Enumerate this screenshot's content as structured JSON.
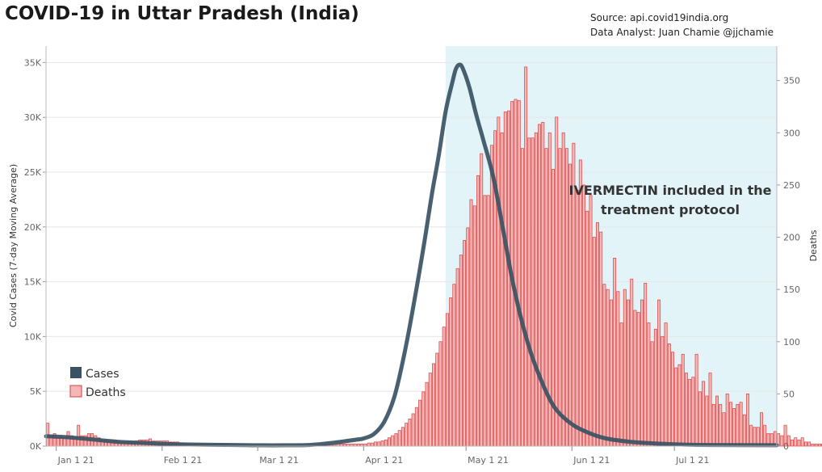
{
  "title": "COVID-19 in Uttar Pradesh (India)",
  "source_line": "Source: api.covid19india.org",
  "analyst_line": "Data Analyst:  Juan Chamie @jjchamie",
  "colors": {
    "cases_line": "#3a5264",
    "bar_fill": "#f4b6b6",
    "bar_stroke": "#d9403f",
    "highlight": "#e2f4f8",
    "grid": "#e6e6e6"
  },
  "chart_data": {
    "type": "bar+line",
    "x_start": "2020-12-29",
    "x_end": "2021-07-31",
    "x_tick_labels": [
      {
        "date": "2021-01-01",
        "label": "Jan 1 21"
      },
      {
        "date": "2021-02-01",
        "label": "Feb 1 21"
      },
      {
        "date": "2021-03-01",
        "label": "Mar 1 21"
      },
      {
        "date": "2021-04-01",
        "label": "Apr 1 21"
      },
      {
        "date": "2021-05-01",
        "label": "May 1 21"
      },
      {
        "date": "2021-06-01",
        "label": "Jun 1 21"
      },
      {
        "date": "2021-07-01",
        "label": "Jul 1 21"
      }
    ],
    "y_left": {
      "label": "Covid Cases (7-day Moving Average)",
      "range": [
        0,
        36500
      ],
      "ticks": [
        0,
        5000,
        10000,
        15000,
        20000,
        25000,
        30000,
        35000
      ],
      "tick_labels": [
        "0K",
        "5K",
        "10K",
        "15K",
        "20K",
        "25K",
        "30K",
        "35K"
      ]
    },
    "y_right": {
      "label": "Deaths",
      "range": [
        0,
        383
      ],
      "ticks": [
        0,
        50,
        100,
        150,
        200,
        250,
        300,
        350
      ],
      "tick_labels": [
        "0",
        "50",
        "100",
        "150",
        "200",
        "250",
        "300",
        "350"
      ]
    },
    "highlight_region": {
      "start": "2021-04-25",
      "end": "2021-07-31"
    },
    "annotation": [
      "IVERMECTIN included in the",
      "treatment protocol"
    ],
    "legend": [
      {
        "name": "Cases",
        "type": "line"
      },
      {
        "name": "Deaths",
        "type": "bar"
      }
    ],
    "series": [
      {
        "name": "Cases",
        "type": "line",
        "axis": "left",
        "x": [
          "2020-12-29",
          "2021-01-05",
          "2021-01-12",
          "2021-01-19",
          "2021-01-26",
          "2021-02-02",
          "2021-02-09",
          "2021-02-16",
          "2021-02-23",
          "2021-03-02",
          "2021-03-09",
          "2021-03-16",
          "2021-03-23",
          "2021-03-30",
          "2021-04-01",
          "2021-04-04",
          "2021-04-07",
          "2021-04-10",
          "2021-04-13",
          "2021-04-16",
          "2021-04-19",
          "2021-04-21",
          "2021-04-23",
          "2021-04-25",
          "2021-04-27",
          "2021-04-28",
          "2021-04-29",
          "2021-04-30",
          "2021-05-02",
          "2021-05-04",
          "2021-05-06",
          "2021-05-09",
          "2021-05-12",
          "2021-05-15",
          "2021-05-19",
          "2021-05-23",
          "2021-05-27",
          "2021-06-01",
          "2021-06-06",
          "2021-06-11",
          "2021-06-18",
          "2021-06-25",
          "2021-07-03",
          "2021-07-12",
          "2021-07-31"
        ],
        "values": [
          900,
          800,
          600,
          400,
          300,
          200,
          150,
          120,
          100,
          80,
          80,
          100,
          300,
          600,
          700,
          1100,
          2200,
          4500,
          8500,
          13500,
          19000,
          23000,
          26500,
          30500,
          33200,
          34400,
          34800,
          34500,
          32700,
          30200,
          28000,
          24500,
          19500,
          14500,
          9500,
          6000,
          3500,
          2000,
          1200,
          700,
          400,
          250,
          150,
          100,
          80
        ]
      },
      {
        "name": "Deaths",
        "type": "bar",
        "axis": "right",
        "start": "2020-12-29",
        "values": [
          22,
          10,
          12,
          8,
          9,
          8,
          14,
          10,
          8,
          20,
          10,
          10,
          12,
          12,
          10,
          8,
          6,
          6,
          5,
          5,
          5,
          4,
          4,
          4,
          4,
          4,
          5,
          6,
          6,
          6,
          7,
          5,
          5,
          5,
          5,
          5,
          4,
          4,
          4,
          3,
          3,
          2,
          2,
          2,
          2,
          2,
          2,
          2,
          2,
          2,
          2,
          2,
          2,
          1,
          1,
          1,
          1,
          1,
          1,
          1,
          1,
          1,
          1,
          1,
          1,
          1,
          1,
          1,
          1,
          1,
          1,
          1,
          1,
          1,
          1,
          1,
          1,
          1,
          1,
          1,
          1,
          1,
          1,
          1,
          1,
          2,
          2,
          2,
          2,
          2,
          2,
          2,
          2,
          2,
          3,
          3,
          4,
          4,
          5,
          6,
          8,
          10,
          12,
          15,
          18,
          22,
          26,
          31,
          37,
          44,
          52,
          61,
          70,
          79,
          89,
          100,
          114,
          127,
          142,
          155,
          170,
          183,
          197,
          209,
          236,
          230,
          259,
          280,
          240,
          240,
          288,
          302,
          315,
          300,
          320,
          321,
          330,
          332,
          331,
          285,
          363,
          295,
          295,
          300,
          308,
          310,
          285,
          300,
          265,
          315,
          285,
          300,
          285,
          270,
          290,
          245,
          274,
          250,
          225,
          240,
          200,
          214,
          205,
          155,
          150,
          140,
          180,
          148,
          118,
          150,
          140,
          160,
          130,
          128,
          140,
          156,
          118,
          100,
          112,
          140,
          105,
          118,
          98,
          90,
          75,
          78,
          88,
          70,
          64,
          66,
          88,
          52,
          62,
          48,
          70,
          40,
          48,
          40,
          32,
          50,
          42,
          36,
          40,
          42,
          30,
          50,
          20,
          18,
          18,
          32,
          20,
          12,
          12,
          14,
          12,
          10,
          20,
          10,
          6,
          8,
          6,
          8,
          4,
          4,
          2,
          2,
          2,
          2,
          6,
          6,
          4,
          3,
          5,
          3,
          2,
          2,
          2,
          2,
          2,
          2
        ]
      }
    ]
  }
}
